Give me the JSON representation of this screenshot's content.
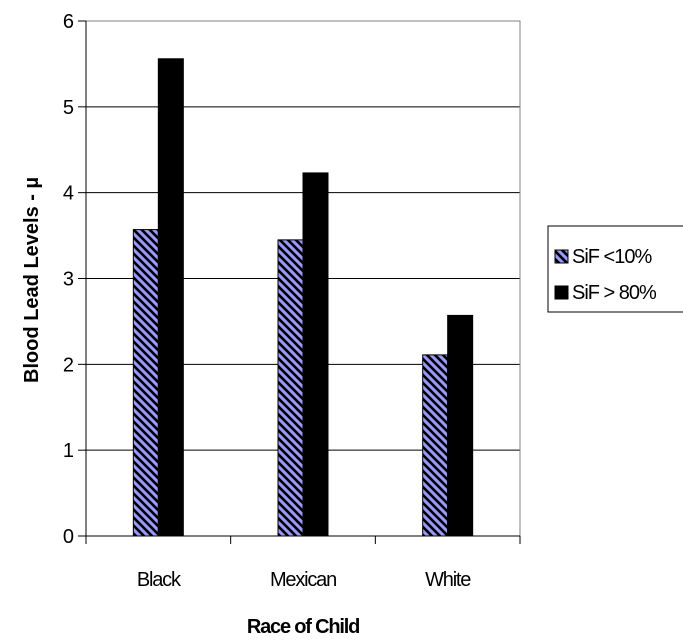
{
  "chart_data": {
    "type": "bar",
    "categories": [
      "Black",
      "Mexican",
      "White"
    ],
    "series": [
      {
        "name": "SiF <10%",
        "values": [
          3.57,
          3.45,
          2.11
        ],
        "color": "#9999ff",
        "pattern": "diagonal-hatch"
      },
      {
        "name": "SiF > 80%",
        "values": [
          5.56,
          4.23,
          2.57
        ],
        "color": "#000000",
        "pattern": "solid"
      }
    ],
    "xlabel": "Race of Child",
    "ylabel": "Blood Lead Levels - µ",
    "ylim": [
      0,
      6
    ],
    "yticks": [
      "0",
      "1",
      "2",
      "3",
      "4",
      "5",
      "6"
    ],
    "grid": true,
    "legend": "right"
  }
}
